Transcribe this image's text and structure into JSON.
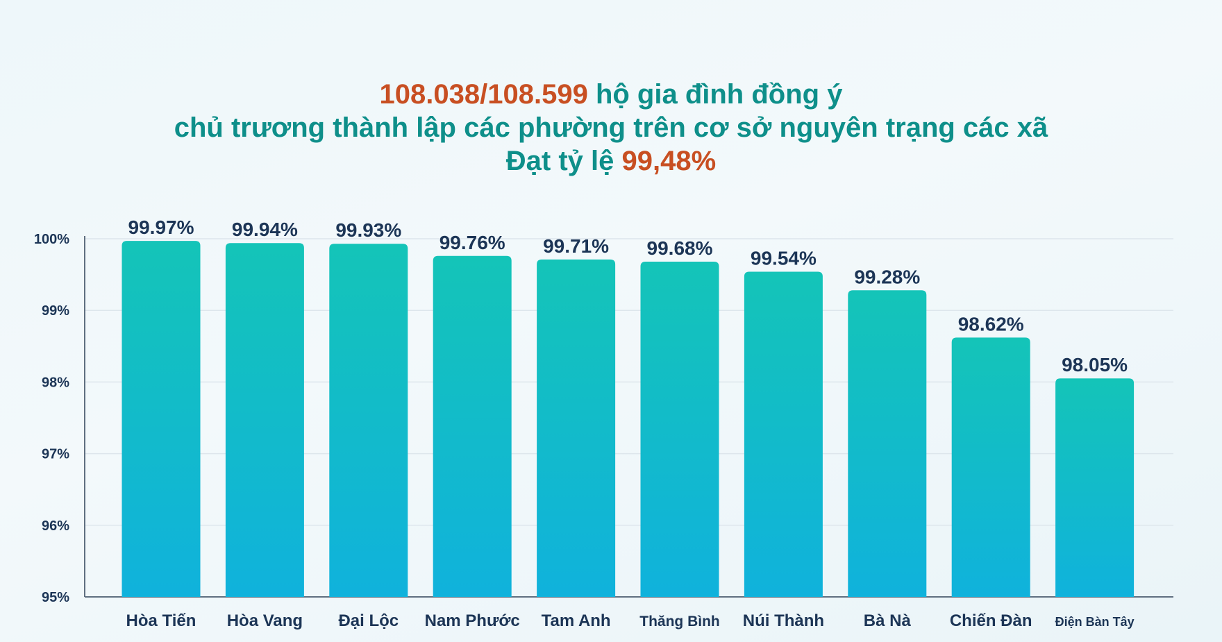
{
  "title": {
    "line1_accent": "108.038/108.599",
    "line1_rest": " hộ gia đình đồng ý",
    "line2": "chủ trương thành lập các phường trên cơ sở nguyên trạng các xã",
    "line3_prefix": "Đạt tỷ lệ ",
    "line3_accent": "99,48%"
  },
  "colors": {
    "accent_orange": "#c84f22",
    "title_teal": "#0e8f8a",
    "bar_top": "#14c4b8",
    "bar_bottom": "#10b2dc",
    "label_navy": "#1c3556",
    "gridline": "#dde6ec"
  },
  "chart_data": {
    "type": "bar",
    "categories": [
      "Hòa Tiến",
      "Hòa Vang",
      "Đại Lộc",
      "Nam Phước",
      "Tam Anh",
      "Thăng Bình",
      "Núi Thành",
      "Bà Nà",
      "Chiến Đàn",
      "Điện Bàn Tây"
    ],
    "values": [
      99.97,
      99.94,
      99.93,
      99.76,
      99.71,
      99.68,
      99.54,
      99.28,
      98.62,
      98.05
    ],
    "value_labels": [
      "99.97%",
      "99.94%",
      "99.93%",
      "99.76%",
      "99.71%",
      "99.68%",
      "99.54%",
      "99.28%",
      "98.62%",
      "98.05%"
    ],
    "yticks": [
      95,
      96,
      97,
      98,
      99,
      100
    ],
    "ytick_labels": [
      "95%",
      "96%",
      "97%",
      "98%",
      "99%",
      "100%"
    ],
    "ylim": [
      95,
      100
    ],
    "grid": true,
    "xlabel": "",
    "ylabel": ""
  }
}
